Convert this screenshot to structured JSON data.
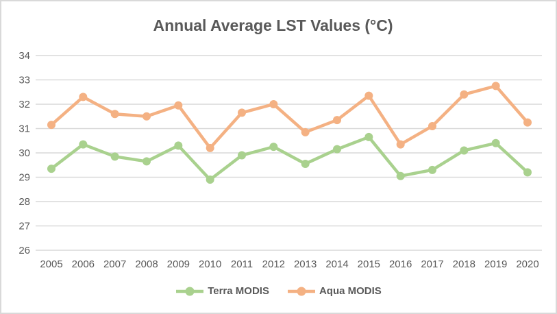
{
  "chart_data": {
    "type": "line",
    "title": "Annual Average LST Values (°C)",
    "categories": [
      "2005",
      "2006",
      "2007",
      "2008",
      "2009",
      "2010",
      "2011",
      "2012",
      "2013",
      "2014",
      "2015",
      "2016",
      "2017",
      "2018",
      "2019",
      "2020"
    ],
    "series": [
      {
        "name": "Terra MODIS",
        "color": "#A9D18E",
        "values": [
          29.35,
          30.35,
          29.85,
          29.65,
          30.3,
          28.9,
          29.9,
          30.25,
          29.55,
          30.15,
          30.65,
          29.05,
          29.3,
          30.1,
          30.4,
          29.2
        ]
      },
      {
        "name": "Aqua MODIS",
        "color": "#F4B183",
        "values": [
          31.15,
          32.3,
          31.6,
          31.5,
          31.95,
          30.2,
          31.65,
          32.0,
          30.85,
          31.35,
          32.35,
          30.35,
          31.1,
          32.4,
          32.75,
          31.25
        ]
      }
    ],
    "xlabel": "",
    "ylabel": "",
    "ylim": [
      26,
      34
    ],
    "yticks": [
      26,
      27,
      28,
      29,
      30,
      31,
      32,
      33,
      34
    ],
    "grid": true,
    "legend_position": "bottom"
  },
  "colors": {
    "background": "#FFFFFF",
    "border": "#D9D9D9",
    "gridline": "#D9D9D9",
    "text": "#595959"
  }
}
